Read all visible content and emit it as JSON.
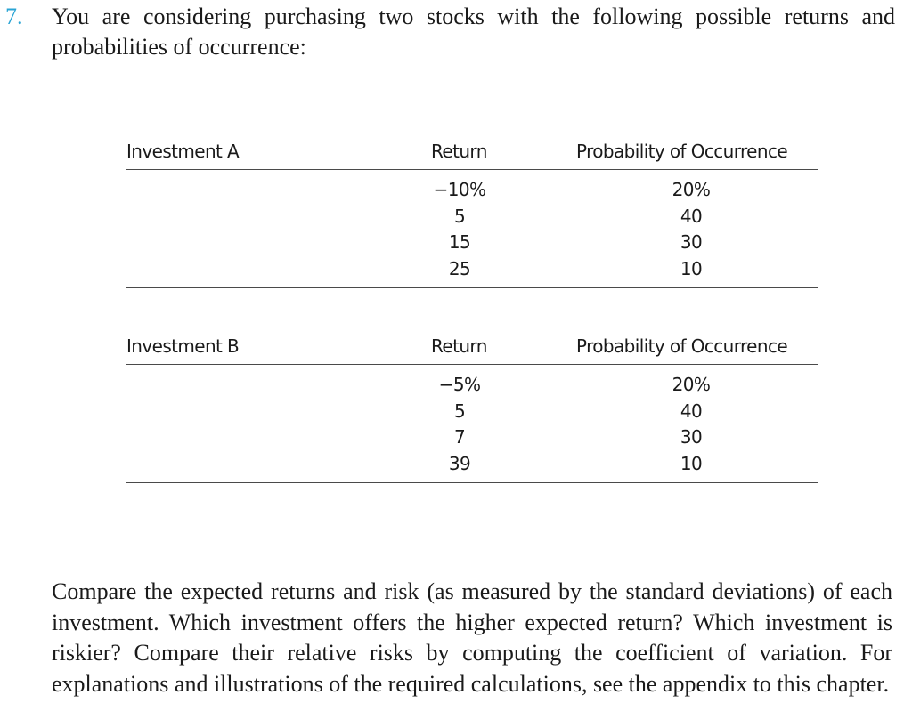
{
  "question": {
    "number": "7.",
    "number_color": "#2aa4d4",
    "intro": "You are considering purchasing two stocks with the following possible returns and probabilities of occurrence:"
  },
  "tables": [
    {
      "name": "Investment A",
      "headers": {
        "return": "Return",
        "probability": "Probability of Occurrence"
      },
      "rows": [
        {
          "return": "−10%",
          "probability": "20%"
        },
        {
          "return": "5",
          "probability": "40"
        },
        {
          "return": "15",
          "probability": "30"
        },
        {
          "return": "25",
          "probability": "10"
        }
      ]
    },
    {
      "name": "Investment B",
      "headers": {
        "return": "Return",
        "probability": "Probability of Occurrence"
      },
      "rows": [
        {
          "return": "−5%",
          "probability": "20%"
        },
        {
          "return": "5",
          "probability": "40"
        },
        {
          "return": "7",
          "probability": "30"
        },
        {
          "return": "39",
          "probability": "10"
        }
      ]
    }
  ],
  "prompt": "Compare the expected returns and risk (as measured by the standard deviations) of each investment. Which investment offers the higher expected return? Which investment is riskier? Compare their relative risks by computing the coefficient of variation. For explanations and illustrations of the required calculations, see the appendix to this chapter."
}
